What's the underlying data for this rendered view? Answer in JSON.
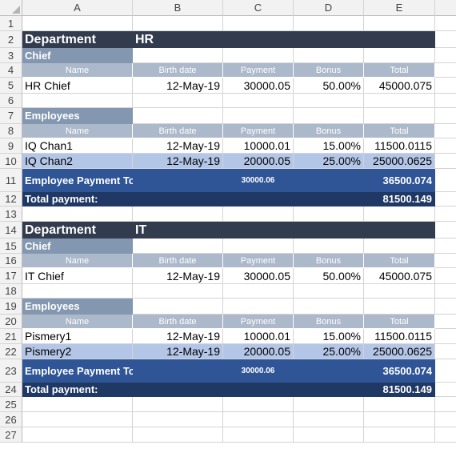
{
  "columns": [
    "A",
    "B",
    "C",
    "D",
    "E"
  ],
  "row_numbers": [
    "1",
    "2",
    "3",
    "4",
    "5",
    "6",
    "7",
    "8",
    "9",
    "10",
    "11",
    "12",
    "13",
    "14",
    "15",
    "16",
    "17",
    "18",
    "19",
    "20",
    "21",
    "22",
    "23",
    "24",
    "25",
    "26",
    "27"
  ],
  "headers": {
    "name": "Name",
    "birth": "Birth date",
    "payment": "Payment",
    "bonus": "Bonus",
    "total": "Total"
  },
  "labels": {
    "department": "Department",
    "chief": "Chief",
    "employees": "Employees",
    "totals": "Employee Payment Totals:",
    "total_payment": "Total payment:"
  },
  "departments": [
    {
      "name": "HR",
      "chief": {
        "name": "HR Chief",
        "birth": "12-May-19",
        "payment": "30000.05",
        "bonus": "50.00%",
        "total": "45000.075"
      },
      "employees": [
        {
          "name": "IQ Chan1",
          "birth": "12-May-19",
          "payment": "10000.01",
          "bonus": "15.00%",
          "total": "11500.0115"
        },
        {
          "name": "IQ Chan2",
          "birth": "12-May-19",
          "payment": "20000.05",
          "bonus": "25.00%",
          "total": "25000.0625"
        }
      ],
      "payment_total": "30000.06",
      "total_total": "36500.074",
      "grand_total": "81500.149"
    },
    {
      "name": "IT",
      "chief": {
        "name": "IT Chief",
        "birth": "12-May-19",
        "payment": "30000.05",
        "bonus": "50.00%",
        "total": "45000.075"
      },
      "employees": [
        {
          "name": "Pismery1",
          "birth": "12-May-19",
          "payment": "10000.01",
          "bonus": "15.00%",
          "total": "11500.0115"
        },
        {
          "name": "Pismery2",
          "birth": "12-May-19",
          "payment": "20000.05",
          "bonus": "25.00%",
          "total": "25000.0625"
        }
      ],
      "payment_total": "30000.06",
      "total_total": "36500.074",
      "grand_total": "81500.149"
    }
  ]
}
